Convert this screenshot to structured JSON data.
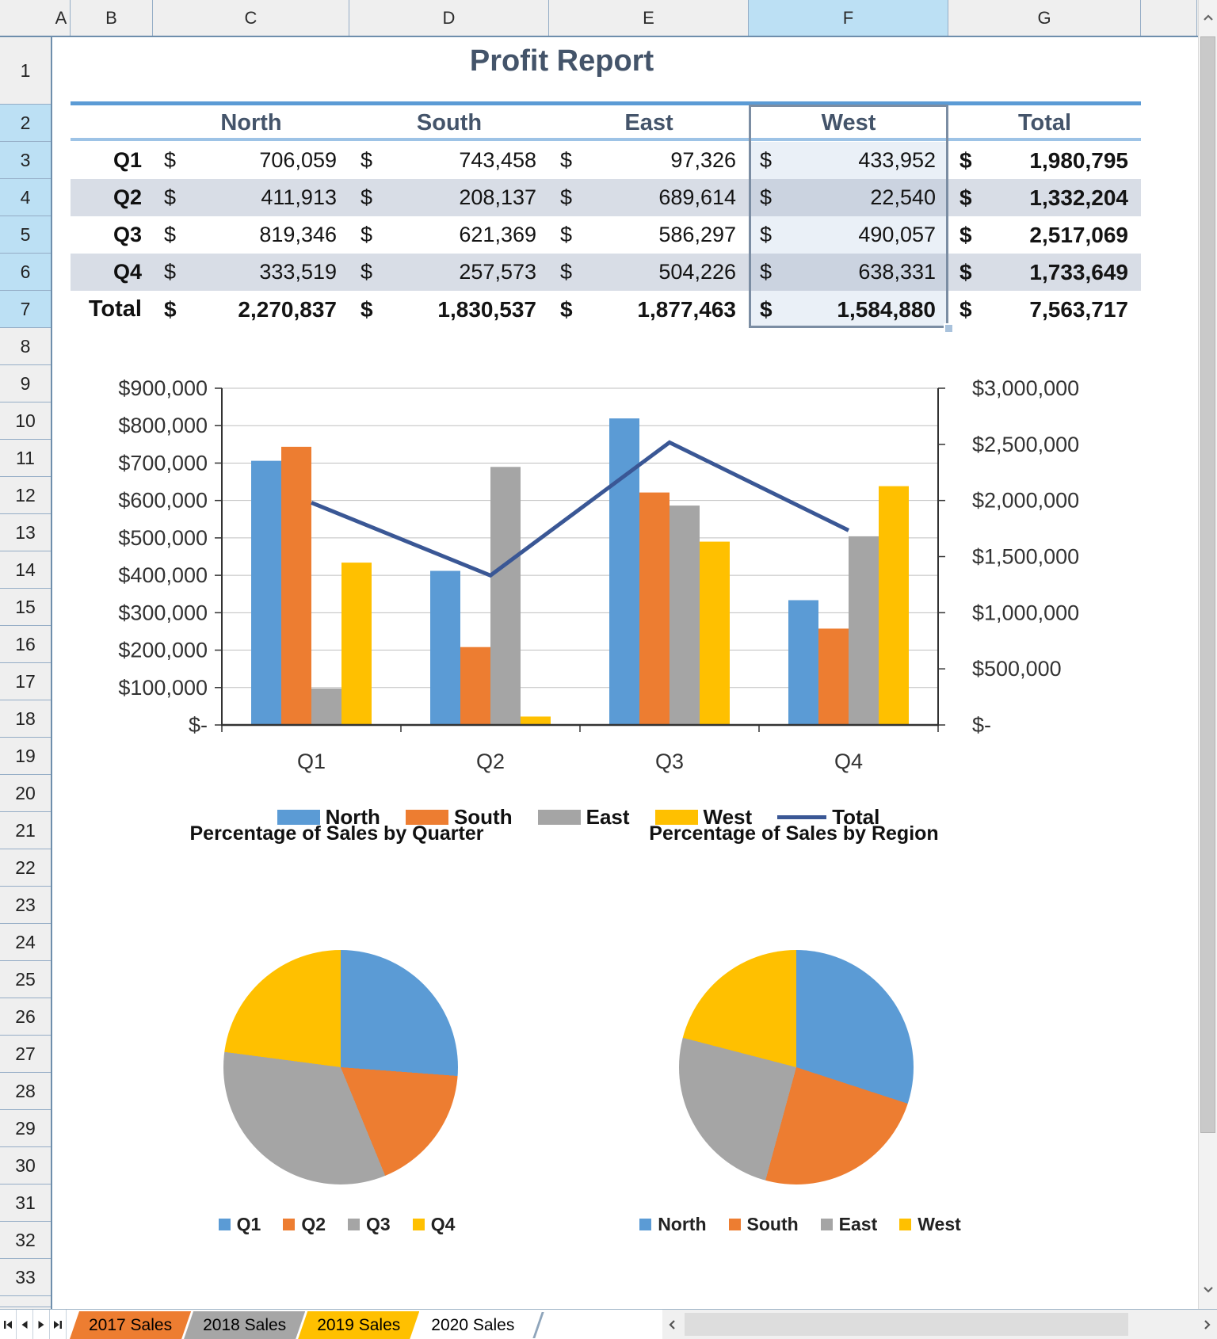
{
  "grid": {
    "column_headers": [
      "A",
      "B",
      "C",
      "D",
      "E",
      "F",
      "G"
    ],
    "selected_column_header": "F",
    "row_count": 33,
    "selected_row_headers": [
      2,
      3,
      4,
      5,
      6,
      7
    ],
    "selection_range": "F2:F7"
  },
  "report": {
    "title": "Profit Report",
    "currency_symbol": "$",
    "column_headers": [
      "North",
      "South",
      "East",
      "West",
      "Total"
    ],
    "rows": [
      {
        "label": "Q1",
        "values": [
          "706,059",
          "743,458",
          "97,326",
          "433,952"
        ],
        "total": "1,980,795"
      },
      {
        "label": "Q2",
        "values": [
          "411,913",
          "208,137",
          "689,614",
          "22,540"
        ],
        "total": "1,332,204"
      },
      {
        "label": "Q3",
        "values": [
          "819,346",
          "621,369",
          "586,297",
          "490,057"
        ],
        "total": "2,517,069"
      },
      {
        "label": "Q4",
        "values": [
          "333,519",
          "257,573",
          "504,226",
          "638,331"
        ],
        "total": "1,733,649"
      }
    ],
    "totals_row": {
      "label": "Total",
      "values": [
        "2,270,837",
        "1,830,537",
        "1,877,463",
        "1,584,880"
      ],
      "total": "7,563,717"
    }
  },
  "chart_data": [
    {
      "type": "bar",
      "subtype": "clustered-column-with-line",
      "categories": [
        "Q1",
        "Q2",
        "Q3",
        "Q4"
      ],
      "series": [
        {
          "name": "North",
          "type": "bar",
          "color": "#5B9BD5",
          "values": [
            706059,
            411913,
            819346,
            333519
          ]
        },
        {
          "name": "South",
          "type": "bar",
          "color": "#ED7D31",
          "values": [
            743458,
            208137,
            621369,
            257573
          ]
        },
        {
          "name": "East",
          "type": "bar",
          "color": "#A5A5A5",
          "values": [
            97326,
            689614,
            586297,
            504226
          ]
        },
        {
          "name": "West",
          "type": "bar",
          "color": "#FFC000",
          "values": [
            433952,
            22540,
            490057,
            638331
          ]
        },
        {
          "name": "Total",
          "type": "line",
          "axis": "right",
          "color": "#3A5795",
          "values": [
            1980795,
            1332204,
            2517069,
            1733649
          ]
        }
      ],
      "left_axis": {
        "min": 0,
        "max": 900000,
        "tick_labels": [
          "$900,000",
          "$800,000",
          "$700,000",
          "$600,000",
          "$500,000",
          "$400,000",
          "$300,000",
          "$200,000",
          "$100,000",
          "$-"
        ]
      },
      "right_axis": {
        "min": 0,
        "max": 3000000,
        "tick_labels": [
          "$3,000,000",
          "$2,500,000",
          "$2,000,000",
          "$1,500,000",
          "$1,000,000",
          "$500,000",
          "$-"
        ]
      },
      "legend": [
        "North",
        "South",
        "East",
        "West",
        "Total"
      ],
      "legend_position": "bottom",
      "grid": true
    },
    {
      "type": "pie",
      "title": "Percentage of Sales by Quarter",
      "categories": [
        "Q1",
        "Q2",
        "Q3",
        "Q4"
      ],
      "values": [
        1980795,
        1332204,
        2517069,
        1733649
      ],
      "colors": [
        "#5B9BD5",
        "#ED7D31",
        "#A5A5A5",
        "#FFC000"
      ],
      "legend_position": "bottom"
    },
    {
      "type": "pie",
      "title": "Percentage of Sales by Region",
      "categories": [
        "North",
        "South",
        "East",
        "West"
      ],
      "values": [
        2270837,
        1830537,
        1877463,
        1584880
      ],
      "colors": [
        "#5B9BD5",
        "#ED7D31",
        "#A5A5A5",
        "#FFC000"
      ],
      "legend_position": "bottom"
    }
  ],
  "sheet_tabs": {
    "tabs": [
      {
        "label": "2017 Sales",
        "color": "#ED7D31",
        "active": false
      },
      {
        "label": "2018 Sales",
        "color": "#A6A6A6",
        "active": false
      },
      {
        "label": "2019 Sales",
        "color": "#FFC000",
        "active": false
      },
      {
        "label": "2020 Sales",
        "color": "#FFFFFF",
        "active": true
      }
    ],
    "nav_icons": [
      "first-sheet",
      "previous-sheet",
      "next-sheet",
      "last-sheet"
    ]
  },
  "icons": {
    "vertical_scroll_up": "chevron-up",
    "vertical_scroll_down": "chevron-down",
    "horizontal_scroll_left": "chevron-left",
    "horizontal_scroll_right": "chevron-right"
  },
  "colors": {
    "accent_blue": "#5B9BD5",
    "accent_orange": "#ED7D31",
    "accent_gray": "#A5A5A5",
    "accent_yellow": "#FFC000",
    "line_navy": "#3A5795",
    "header_text": "#44546A",
    "band_fill": "#D8DDE6",
    "selected_header_fill": "#BCE0F4"
  }
}
